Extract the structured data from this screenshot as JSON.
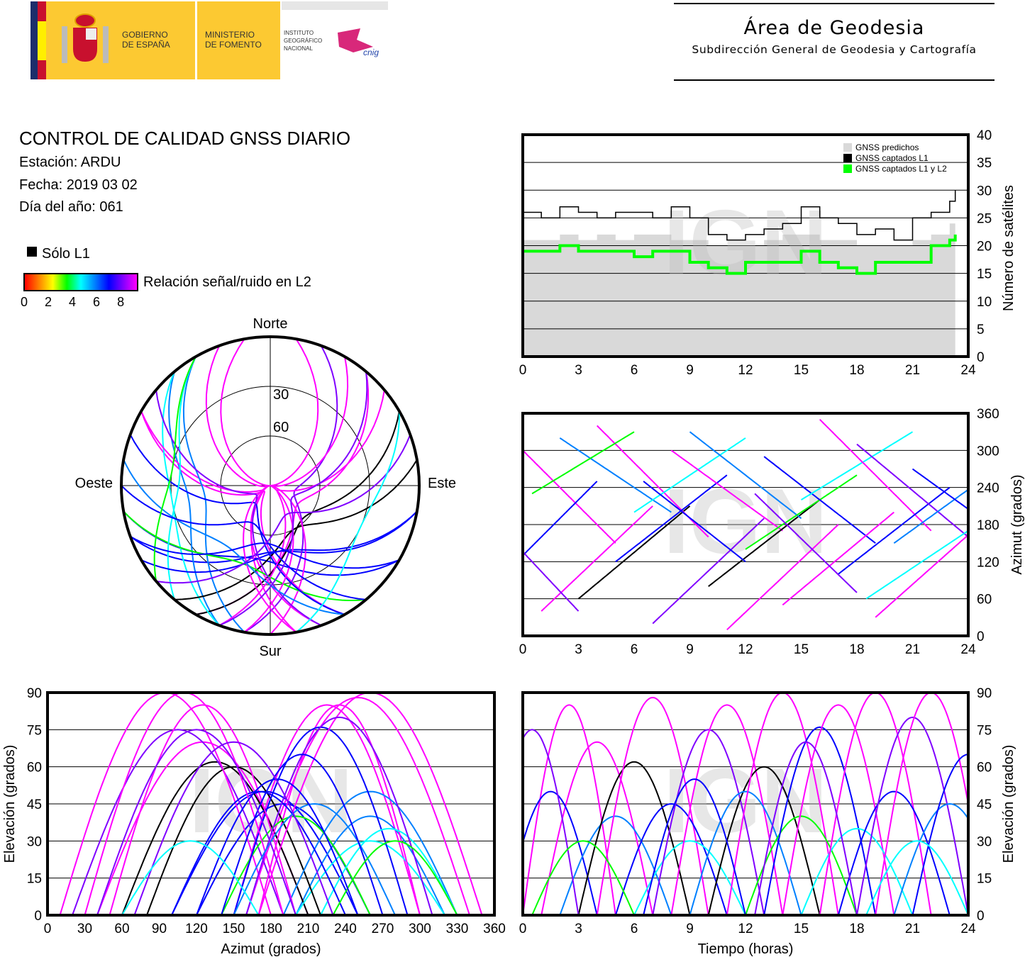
{
  "header": {
    "gov_line1": "GOBIERNO",
    "gov_line2": "DE ESPAÑA",
    "min_line1": "MINISTERIO",
    "min_line2": "DE FOMENTO",
    "ign_line1": "INSTITUTO",
    "ign_line2": "GEOGRÁFICO",
    "ign_line3": "NACIONAL",
    "cnig_logo": "cnig",
    "area_title": "Área de Geodesia",
    "area_subtitle": "Subdirección General de Geodesia y Cartografía"
  },
  "info": {
    "title": "CONTROL DE CALIDAD GNSS DIARIO",
    "station": "Estación: ARDU",
    "date": "Fecha: 2019 03 02",
    "doy": "Día del año: 061"
  },
  "legend": {
    "l1_only": "Sólo L1",
    "snr_label": "Relación señal/ruido en L2",
    "snr_ticks": [
      "0",
      "2",
      "4",
      "6",
      "8"
    ]
  },
  "watermark": "IGN",
  "colors": {
    "l1": "#000000",
    "l1l2": "#00ff00",
    "predicted": "#d9d9d9",
    "snr_scale": [
      "#ff0000",
      "#ff8000",
      "#ffff00",
      "#00ff00",
      "#00ffff",
      "#0080ff",
      "#0000ff",
      "#8000ff",
      "#ff00ff"
    ]
  },
  "chart_data": [
    {
      "type": "line",
      "name": "satellite-count",
      "ylabel": "Número de satélites",
      "xlim": [
        0,
        24
      ],
      "ylim": [
        0,
        40
      ],
      "xticks": [
        "0",
        "3",
        "6",
        "9",
        "12",
        "15",
        "18",
        "21",
        "24"
      ],
      "yticks": [
        "0",
        "5",
        "10",
        "15",
        "20",
        "25",
        "30",
        "35",
        "40"
      ],
      "legend": [
        "GNSS predichos",
        "GNSS captados L1",
        "GNSS captados L1 y L2"
      ],
      "legend_position": "top-right",
      "x": [
        0,
        1,
        2,
        3,
        4,
        5,
        6,
        7,
        8,
        9,
        10,
        11,
        12,
        13,
        14,
        15,
        16,
        17,
        18,
        19,
        20,
        21,
        22,
        23,
        23.3
      ],
      "series": [
        {
          "name": "GNSS predichos",
          "values": [
            21,
            21,
            22,
            21,
            22,
            21,
            22,
            22,
            21,
            21,
            20,
            20,
            20,
            21,
            22,
            22,
            21,
            21,
            20,
            20,
            20,
            21,
            22,
            24,
            24
          ]
        },
        {
          "name": "GNSS captados L1",
          "values": [
            26,
            25,
            27,
            26,
            25,
            26,
            26,
            25,
            27,
            25,
            22,
            21,
            22,
            23,
            24,
            27,
            25,
            24,
            22,
            23,
            21,
            25,
            26,
            28,
            30
          ]
        },
        {
          "name": "GNSS captados L1 y L2",
          "values": [
            19,
            19,
            20,
            19,
            19,
            19,
            18,
            19,
            19,
            17,
            16,
            15,
            17,
            17,
            17,
            19,
            17,
            16,
            15,
            17,
            17,
            17,
            20,
            21,
            22
          ]
        }
      ]
    },
    {
      "type": "scatter",
      "name": "satellite-tracks",
      "note": "passes drive skyplot, azimuth-vs-time, elevation-vs-azimuth and elevation-vs-time plots",
      "skyplot_labels": {
        "north": "Norte",
        "south": "Sur",
        "west": "Oeste",
        "east": "Este",
        "rings": [
          "30",
          "60"
        ]
      },
      "azimuth_plot": {
        "ylabel": "Azimut (grados)",
        "yticks": [
          "0",
          "60",
          "120",
          "180",
          "240",
          "300",
          "360"
        ],
        "xticks": [
          "0",
          "3",
          "6",
          "9",
          "12",
          "15",
          "18",
          "21",
          "24"
        ]
      },
      "elev_az_plot": {
        "xlabel": "Azimut (grados)",
        "ylabel": "Elevación (grados)",
        "xticks": [
          "0",
          "30",
          "60",
          "90",
          "120",
          "150",
          "180",
          "210",
          "240",
          "270",
          "300",
          "330",
          "360"
        ],
        "yticks": [
          "0",
          "15",
          "30",
          "45",
          "60",
          "75",
          "90"
        ]
      },
      "elev_time_plot": {
        "xlabel": "Tiempo (horas)",
        "ylabel": "Elevación (grados)",
        "xticks": [
          "0",
          "3",
          "6",
          "9",
          "12",
          "15",
          "18",
          "21",
          "24"
        ],
        "yticks": [
          "0",
          "15",
          "30",
          "45",
          "60",
          "75",
          "90"
        ]
      },
      "passes": [
        {
          "t0": 0,
          "t1": 5,
          "max_el": 85,
          "az0": 300,
          "az1": 150,
          "snr": 8
        },
        {
          "t0": 1,
          "t1": 7,
          "max_el": 70,
          "az0": 40,
          "az1": 210,
          "snr": 8
        },
        {
          "t0": -1,
          "t1": 4,
          "max_el": 50,
          "az0": 100,
          "az1": 250,
          "snr": 6
        },
        {
          "t0": 2,
          "t1": 8,
          "max_el": 40,
          "az0": 320,
          "az1": 200,
          "snr": 5
        },
        {
          "t0": 3,
          "t1": 9,
          "max_el": 62,
          "az0": 60,
          "az1": 210,
          "snr": -1
        },
        {
          "t0": 4,
          "t1": 10,
          "max_el": 88,
          "az0": 340,
          "az1": 160,
          "snr": 8
        },
        {
          "t0": 5,
          "t1": 11,
          "max_el": 45,
          "az0": 120,
          "az1": 260,
          "snr": 6
        },
        {
          "t0": 6,
          "t1": 12,
          "max_el": 30,
          "az0": 200,
          "az1": 320,
          "snr": 4
        },
        {
          "t0": 7,
          "t1": 13,
          "max_el": 75,
          "az0": 20,
          "az1": 190,
          "snr": 7
        },
        {
          "t0": 8,
          "t1": 14,
          "max_el": 85,
          "az0": 300,
          "az1": 170,
          "snr": 8
        },
        {
          "t0": 10,
          "t1": 16,
          "max_el": 60,
          "az0": 80,
          "az1": 220,
          "snr": -1
        },
        {
          "t0": 9,
          "t1": 15,
          "max_el": 50,
          "az0": 330,
          "az1": 190,
          "snr": 5
        },
        {
          "t0": 11,
          "t1": 17,
          "max_el": 90,
          "az0": 10,
          "az1": 180,
          "snr": 8
        },
        {
          "t0": 12,
          "t1": 18,
          "max_el": 40,
          "az0": 140,
          "az1": 260,
          "snr": 3
        },
        {
          "t0": 13,
          "t1": 19,
          "max_el": 76,
          "az0": 290,
          "az1": 150,
          "snr": 6
        },
        {
          "t0": 14,
          "t1": 20,
          "max_el": 85,
          "az0": 50,
          "az1": 200,
          "snr": 8
        },
        {
          "t0": 15,
          "t1": 21,
          "max_el": 35,
          "az0": 220,
          "az1": 330,
          "snr": 4
        },
        {
          "t0": 16,
          "t1": 22,
          "max_el": 90,
          "az0": 350,
          "az1": 170,
          "snr": 8
        },
        {
          "t0": 17,
          "t1": 23,
          "max_el": 50,
          "az0": 100,
          "az1": 240,
          "snr": 6
        },
        {
          "t0": 18,
          "t1": 24,
          "max_el": 80,
          "az0": 310,
          "az1": 160,
          "snr": 7
        },
        {
          "t0": 19,
          "t1": 25,
          "max_el": 90,
          "az0": 30,
          "az1": 190,
          "snr": 8
        },
        {
          "t0": 20,
          "t1": 26,
          "max_el": 45,
          "az0": 150,
          "az1": 280,
          "snr": 5
        },
        {
          "t0": 21,
          "t1": 27,
          "max_el": 65,
          "az0": 270,
          "az1": 140,
          "snr": 6
        },
        {
          "t0": -2,
          "t1": 3,
          "max_el": 75,
          "az0": 200,
          "az1": 40,
          "snr": 7
        },
        {
          "t0": 0.5,
          "t1": 6,
          "max_el": 30,
          "az0": 230,
          "az1": 330,
          "snr": 3
        },
        {
          "t0": 6.5,
          "t1": 12,
          "max_el": 55,
          "az0": 250,
          "az1": 120,
          "snr": 6
        },
        {
          "t0": 12.5,
          "t1": 18,
          "max_el": 70,
          "az0": 230,
          "az1": 70,
          "snr": 7
        },
        {
          "t0": 18.5,
          "t1": 24,
          "max_el": 30,
          "az0": 60,
          "az1": 170,
          "snr": 4
        }
      ]
    }
  ]
}
